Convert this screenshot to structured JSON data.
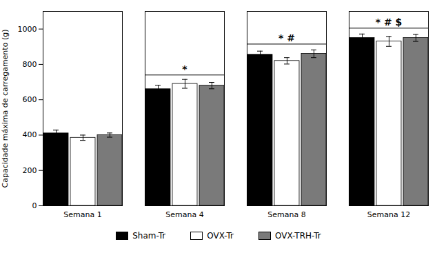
{
  "chart_data": {
    "type": "bar",
    "ylabel": "Capacidade máxima de carregamento (g)",
    "categories": [
      "Semana 1",
      "Semana 4",
      "Semana 8",
      "Semana 12"
    ],
    "series": [
      {
        "name": "Sham-Tr",
        "color": "#000000",
        "values": [
          410,
          660,
          855,
          950
        ],
        "errors": [
          18,
          22,
          20,
          22
        ]
      },
      {
        "name": "OVX-Tr",
        "color": "#ffffff",
        "values": [
          385,
          690,
          820,
          930
        ],
        "errors": [
          15,
          25,
          18,
          28
        ]
      },
      {
        "name": "OVX-TRH-Tr",
        "color": "#7a7a7a",
        "values": [
          400,
          680,
          860,
          950
        ],
        "errors": [
          12,
          18,
          22,
          20
        ]
      }
    ],
    "ylim": [
      0,
      1100
    ],
    "yticks": [
      0,
      200,
      400,
      600,
      800,
      1000
    ],
    "legend": "bottom",
    "annotations": [
      {
        "category": "Semana 4",
        "y": 740,
        "text": "*"
      },
      {
        "category": "Semana 8",
        "y": 915,
        "text": "* #"
      },
      {
        "category": "Semana 12",
        "y": 1005,
        "text": "* # $"
      }
    ]
  }
}
